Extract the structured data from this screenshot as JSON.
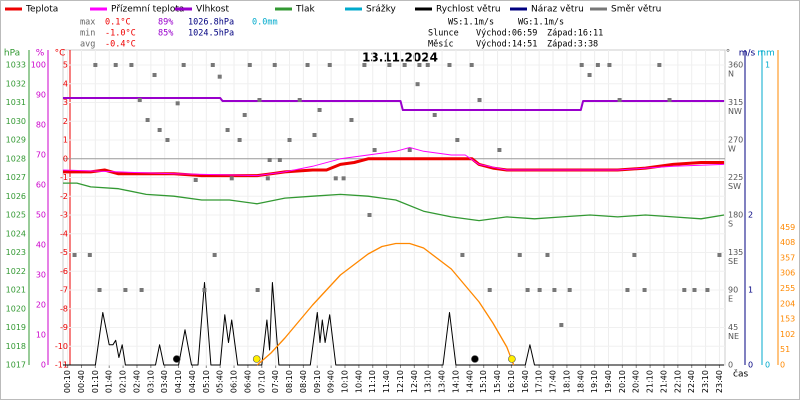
{
  "chart_data": {
    "type": "line",
    "title": "13.11.2024",
    "xlabel": "čas",
    "xlim": [
      0,
      1432
    ],
    "xticks": [
      {
        "value": 10,
        "label": "00:10"
      },
      {
        "value": 40,
        "label": "00:40"
      },
      {
        "value": 70,
        "label": "01:10"
      },
      {
        "value": 100,
        "label": "01:40"
      },
      {
        "value": 130,
        "label": "02:10"
      },
      {
        "value": 160,
        "label": "02:40"
      },
      {
        "value": 190,
        "label": "03:10"
      },
      {
        "value": 220,
        "label": "03:40"
      },
      {
        "value": 250,
        "label": "04:10"
      },
      {
        "value": 280,
        "label": "04:40"
      },
      {
        "value": 310,
        "label": "05:10"
      },
      {
        "value": 340,
        "label": "05:40"
      },
      {
        "value": 370,
        "label": "06:10"
      },
      {
        "value": 400,
        "label": "06:40"
      },
      {
        "value": 430,
        "label": "07:10"
      },
      {
        "value": 460,
        "label": "07:40"
      },
      {
        "value": 490,
        "label": "08:10"
      },
      {
        "value": 520,
        "label": "08:40"
      },
      {
        "value": 550,
        "label": "09:10"
      },
      {
        "value": 580,
        "label": "09:40"
      },
      {
        "value": 610,
        "label": "10:10"
      },
      {
        "value": 640,
        "label": "10:40"
      },
      {
        "value": 670,
        "label": "11:10"
      },
      {
        "value": 700,
        "label": "11:40"
      },
      {
        "value": 730,
        "label": "12:10"
      },
      {
        "value": 760,
        "label": "12:40"
      },
      {
        "value": 790,
        "label": "13:10"
      },
      {
        "value": 820,
        "label": "13:40"
      },
      {
        "value": 850,
        "label": "14:10"
      },
      {
        "value": 880,
        "label": "14:40"
      },
      {
        "value": 910,
        "label": "15:10"
      },
      {
        "value": 940,
        "label": "15:40"
      },
      {
        "value": 970,
        "label": "16:10"
      },
      {
        "value": 1000,
        "label": "16:40"
      },
      {
        "value": 1030,
        "label": "17:10"
      },
      {
        "value": 1060,
        "label": "17:40"
      },
      {
        "value": 1090,
        "label": "18:10"
      },
      {
        "value": 1120,
        "label": "18:40"
      },
      {
        "value": 1150,
        "label": "19:10"
      },
      {
        "value": 1180,
        "label": "19:40"
      },
      {
        "value": 1210,
        "label": "20:10"
      },
      {
        "value": 1240,
        "label": "20:40"
      },
      {
        "value": 1270,
        "label": "21:10"
      },
      {
        "value": 1300,
        "label": "21:40"
      },
      {
        "value": 1330,
        "label": "22:10"
      },
      {
        "value": 1360,
        "label": "22:40"
      },
      {
        "value": 1390,
        "label": "23:10"
      },
      {
        "value": 1420,
        "label": "23:40"
      }
    ],
    "grid": true,
    "axes": {
      "pressure": {
        "unit": "hPa",
        "color": "#339933",
        "ylim": [
          1017,
          1033.8
        ],
        "yticks": [
          1017,
          1018,
          1019,
          1020,
          1021,
          1022,
          1023,
          1024,
          1025,
          1026,
          1027,
          1028,
          1029,
          1030,
          1031,
          1032,
          1033
        ]
      },
      "humidity": {
        "unit": "%",
        "color": "#cc00cc",
        "ylim": [
          0,
          105
        ],
        "yticks": [
          0,
          10,
          20,
          30,
          40,
          50,
          60,
          70,
          80,
          90,
          100
        ]
      },
      "temp": {
        "unit": "°C",
        "color": "#ee0000",
        "ylim": [
          -11,
          5.8
        ],
        "yticks": [
          -11,
          -10,
          -9,
          -8,
          -7,
          -6,
          -5,
          -4,
          -3,
          -2,
          -1,
          0,
          1,
          2,
          3,
          4,
          5
        ]
      },
      "direction": {
        "unit": "°",
        "color": "#555555",
        "ylim": [
          0,
          378
        ],
        "yticks": [
          360,
          315,
          270,
          225,
          180,
          135,
          90,
          45,
          0
        ],
        "tick_names": [
          "N",
          "NW",
          "W",
          "SW",
          "S",
          "SE",
          "E",
          "NE"
        ]
      },
      "wind": {
        "unit": "m/s",
        "color": "#000080",
        "ylim": [
          0,
          4.2
        ],
        "yticks": [
          0,
          1,
          2
        ]
      },
      "rain": {
        "unit": "mm",
        "color": "#00aacc",
        "ylim": [
          0,
          1.05
        ],
        "yticks": [
          0,
          1
        ]
      },
      "solar": {
        "color": "#ff8800",
        "ylim": [
          0,
          1050
        ],
        "yticks": [
          0,
          51,
          102,
          153,
          204,
          255,
          306,
          357,
          408,
          459
        ]
      }
    },
    "series": [
      {
        "name": "Teplota",
        "color": "#ee0000",
        "axis": "temp",
        "width": 3,
        "x": [
          0,
          60,
          90,
          120,
          180,
          240,
          300,
          360,
          420,
          450,
          480,
          540,
          570,
          600,
          630,
          660,
          720,
          780,
          840,
          885,
          900,
          930,
          960,
          1080,
          1200,
          1260,
          1320,
          1380,
          1430
        ],
        "values": [
          -0.7,
          -0.7,
          -0.6,
          -0.8,
          -0.8,
          -0.8,
          -0.9,
          -0.9,
          -0.9,
          -0.8,
          -0.7,
          -0.6,
          -0.6,
          -0.3,
          -0.2,
          0.0,
          0.0,
          0.0,
          0.0,
          0.0,
          -0.3,
          -0.5,
          -0.6,
          -0.6,
          -0.6,
          -0.5,
          -0.3,
          -0.2,
          -0.2
        ]
      },
      {
        "name": "Přízemní teplota",
        "color": "#ff00ff",
        "axis": "temp",
        "width": 1,
        "x": [
          0,
          120,
          240,
          420,
          480,
          540,
          600,
          660,
          720,
          750,
          780,
          840,
          870,
          900,
          960,
          1200,
          1320,
          1430
        ],
        "values": [
          -0.6,
          -0.7,
          -0.8,
          -0.9,
          -0.7,
          -0.4,
          0.0,
          0.2,
          0.4,
          0.6,
          0.4,
          0.2,
          0.2,
          -0.3,
          -0.6,
          -0.6,
          -0.4,
          -0.3
        ]
      },
      {
        "name": "Vlhkost",
        "color": "#9900cc",
        "axis": "humidity",
        "width": 2,
        "x": [
          0,
          340,
          345,
          730,
          735,
          1120,
          1125,
          1430
        ],
        "values": [
          89,
          89,
          88,
          88,
          85,
          85,
          88,
          88
        ]
      },
      {
        "name": "Tlak",
        "color": "#339933",
        "axis": "pressure",
        "width": 1.3,
        "x": [
          0,
          30,
          60,
          120,
          180,
          240,
          300,
          360,
          420,
          480,
          540,
          600,
          660,
          720,
          780,
          840,
          900,
          960,
          1020,
          1080,
          1140,
          1200,
          1260,
          1320,
          1380,
          1430
        ],
        "values": [
          1026.7,
          1026.7,
          1026.5,
          1026.4,
          1026.1,
          1026.0,
          1025.8,
          1025.8,
          1025.6,
          1025.9,
          1026.0,
          1026.1,
          1026.0,
          1025.8,
          1025.2,
          1024.9,
          1024.7,
          1024.9,
          1024.8,
          1024.9,
          1025.0,
          1024.9,
          1025.0,
          1024.9,
          1024.8,
          1025.0
        ]
      },
      {
        "name": "Srážky",
        "color": "#00aacc",
        "axis": "rain"
      },
      {
        "name": "Rychlost větru",
        "color": "#000000",
        "axis": "wind",
        "width": 1,
        "x": [
          0,
          70,
          86,
          100,
          108,
          114,
          121,
          128,
          135,
          200,
          209,
          218,
          250,
          264,
          278,
          292,
          306,
          320,
          340,
          350,
          358,
          365,
          378,
          430,
          441,
          447,
          453,
          467,
          535,
          550,
          556,
          561,
          567,
          577,
          590,
          822,
          836,
          850,
          1000,
          1010,
          1020,
          1430
        ],
        "values": [
          0,
          0,
          0.7,
          0.27,
          0.27,
          0.33,
          0.1,
          0.27,
          0,
          0,
          0.27,
          0,
          0,
          0.47,
          0,
          0,
          1.1,
          0,
          0,
          0.67,
          0.3,
          0.6,
          0,
          0,
          0.6,
          0.2,
          1.1,
          0,
          0,
          0.7,
          0.3,
          0.6,
          0.3,
          0.67,
          0,
          0,
          0.7,
          0,
          0,
          0.27,
          0,
          0
        ]
      },
      {
        "name": "Náraz větru",
        "color": "#000080",
        "axis": "wind"
      },
      {
        "name": "Směr větru",
        "color": "#777777",
        "axis": "direction",
        "points": true,
        "x": [
          25,
          58,
          70,
          79,
          114,
          135,
          148,
          166,
          170,
          183,
          198,
          209,
          226,
          248,
          261,
          287,
          306,
          324,
          328,
          339,
          356,
          365,
          382,
          393,
          404,
          421,
          425,
          443,
          447,
          458,
          469,
          490,
          512,
          529,
          544,
          555,
          577,
          590,
          607,
          624,
          652,
          663,
          674,
          706,
          739,
          750,
          767,
          771,
          789,
          804,
          836,
          853,
          864,
          884,
          901,
          923,
          944,
          988,
          1005,
          1031,
          1048,
          1063,
          1078,
          1096,
          1122,
          1139,
          1157,
          1182,
          1204,
          1221,
          1236,
          1258,
          1290,
          1312,
          1344,
          1366,
          1394,
          1420
        ],
        "values": [
          132,
          132,
          360,
          90,
          360,
          90,
          360,
          318,
          90,
          294,
          348,
          282,
          270,
          314,
          360,
          222,
          90,
          360,
          132,
          346,
          282,
          224,
          270,
          300,
          360,
          90,
          318,
          224,
          246,
          360,
          246,
          270,
          318,
          360,
          276,
          306,
          360,
          224,
          224,
          294,
          360,
          180,
          258,
          360,
          360,
          258,
          337,
          360,
          360,
          300,
          360,
          270,
          132,
          360,
          318,
          90,
          258,
          132,
          90,
          90,
          132,
          90,
          48,
          90,
          360,
          348,
          360,
          360,
          318,
          90,
          132,
          90,
          360,
          318,
          90,
          90,
          90,
          132
        ]
      },
      {
        "color": "#ff8800",
        "axis": "solar",
        "width": 1.3,
        "x": [
          420,
          450,
          480,
          540,
          600,
          660,
          690,
          720,
          750,
          780,
          840,
          900,
          930,
          960,
          975
        ],
        "values": [
          0,
          40,
          90,
          200,
          300,
          370,
          395,
          405,
          405,
          390,
          320,
          210,
          140,
          60,
          0
        ]
      }
    ],
    "events": [
      {
        "x": 246,
        "color": "#000000"
      },
      {
        "x": 419,
        "color": "#ffee00"
      },
      {
        "x": 891,
        "color": "#000000"
      },
      {
        "x": 971,
        "color": "#ffee00"
      }
    ],
    "stats": [
      {
        "label": "max",
        "temp": "0.1°C",
        "hum": "89%",
        "press": "1026.8hPa",
        "rain": "0.0mm"
      },
      {
        "label": "min",
        "temp": "-1.0°C",
        "hum": "85%",
        "press": "1024.5hPa"
      },
      {
        "label": "avg",
        "temp": "-0.4°C"
      }
    ],
    "info": {
      "ws": "WS:1.1m/s",
      "wg": "WG:1.1m/s",
      "sun": "Slunce",
      "sunrise": "Východ:06:59",
      "sunset": "Západ:16:11",
      "moon": "Měsíc",
      "moonrise": "Východ:14:51",
      "moonset": "Západ:3:38"
    }
  }
}
